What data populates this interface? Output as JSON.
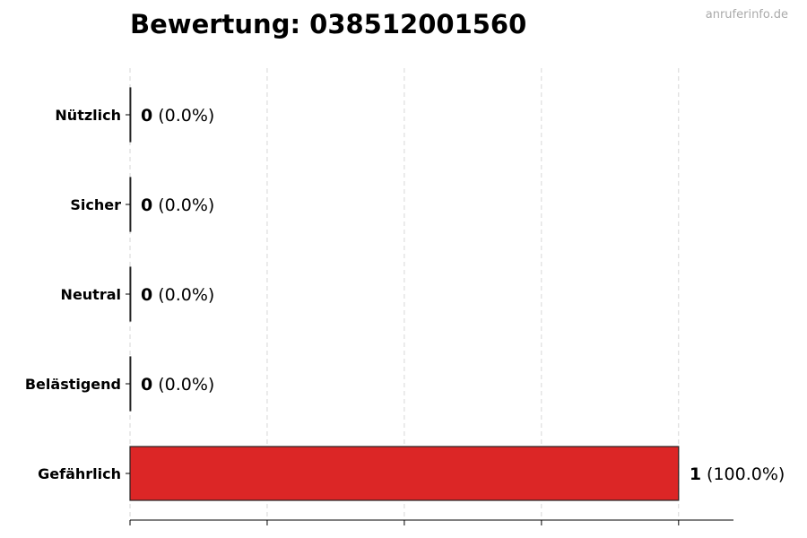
{
  "title": "Bewertung: 038512001560",
  "watermark": "anruferinfo.de",
  "chart_data": {
    "type": "bar",
    "orientation": "horizontal",
    "title": "Bewertung: 038512001560",
    "categories": [
      "Nützlich",
      "Sicher",
      "Neutral",
      "Belästigend",
      "Gefährlich"
    ],
    "values": [
      0,
      0,
      0,
      0,
      1
    ],
    "value_labels": [
      "0",
      "0",
      "0",
      "0",
      "1"
    ],
    "percent_labels": [
      "(0.0%)",
      "(0.0%)",
      "(0.0%)",
      "(0.0%)",
      "(100.0%)"
    ],
    "colors": [
      "#2ca02c",
      "#1f77b4",
      "#999999",
      "#ff7f0e",
      "#dc2626"
    ],
    "xlim": [
      0,
      1.1
    ],
    "x_gridlines": [
      0,
      0.25,
      0.5,
      0.75,
      1.0
    ],
    "grid": "x, dashed",
    "xlabel": "",
    "ylabel": ""
  }
}
